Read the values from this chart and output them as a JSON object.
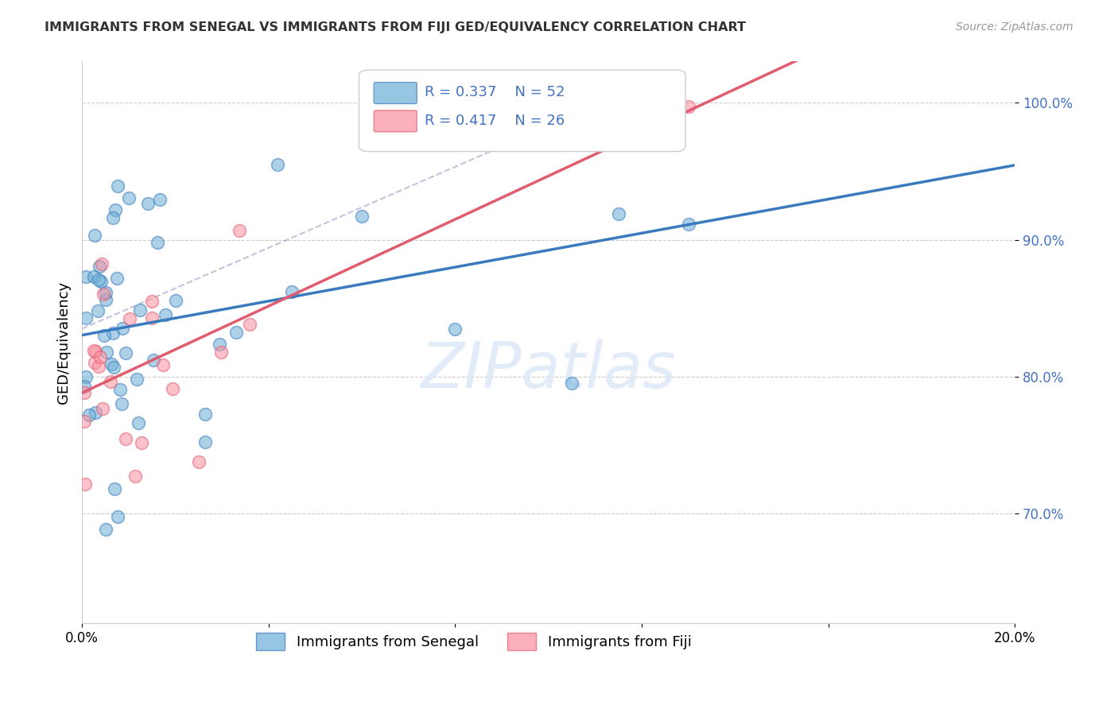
{
  "title": "IMMIGRANTS FROM SENEGAL VS IMMIGRANTS FROM FIJI GED/EQUIVALENCY CORRELATION CHART",
  "source": "Source: ZipAtlas.com",
  "ylabel": "GED/Equivalency",
  "ytick_labels": [
    "70.0%",
    "80.0%",
    "90.0%",
    "100.0%"
  ],
  "ytick_values": [
    0.7,
    0.8,
    0.9,
    1.0
  ],
  "xlim": [
    0.0,
    0.2
  ],
  "ylim": [
    0.62,
    1.03
  ],
  "legend_blue": {
    "R": "0.337",
    "N": "52",
    "label": "Immigrants from Senegal"
  },
  "legend_pink": {
    "R": "0.417",
    "N": "26",
    "label": "Immigrants from Fiji"
  },
  "blue_color": "#6baed6",
  "pink_color": "#fc8fa0",
  "line_blue_color": "#3a7abf",
  "line_pink_color": "#e05c6e",
  "watermark": "ZIPatlas",
  "grid_color": "#cccccc"
}
